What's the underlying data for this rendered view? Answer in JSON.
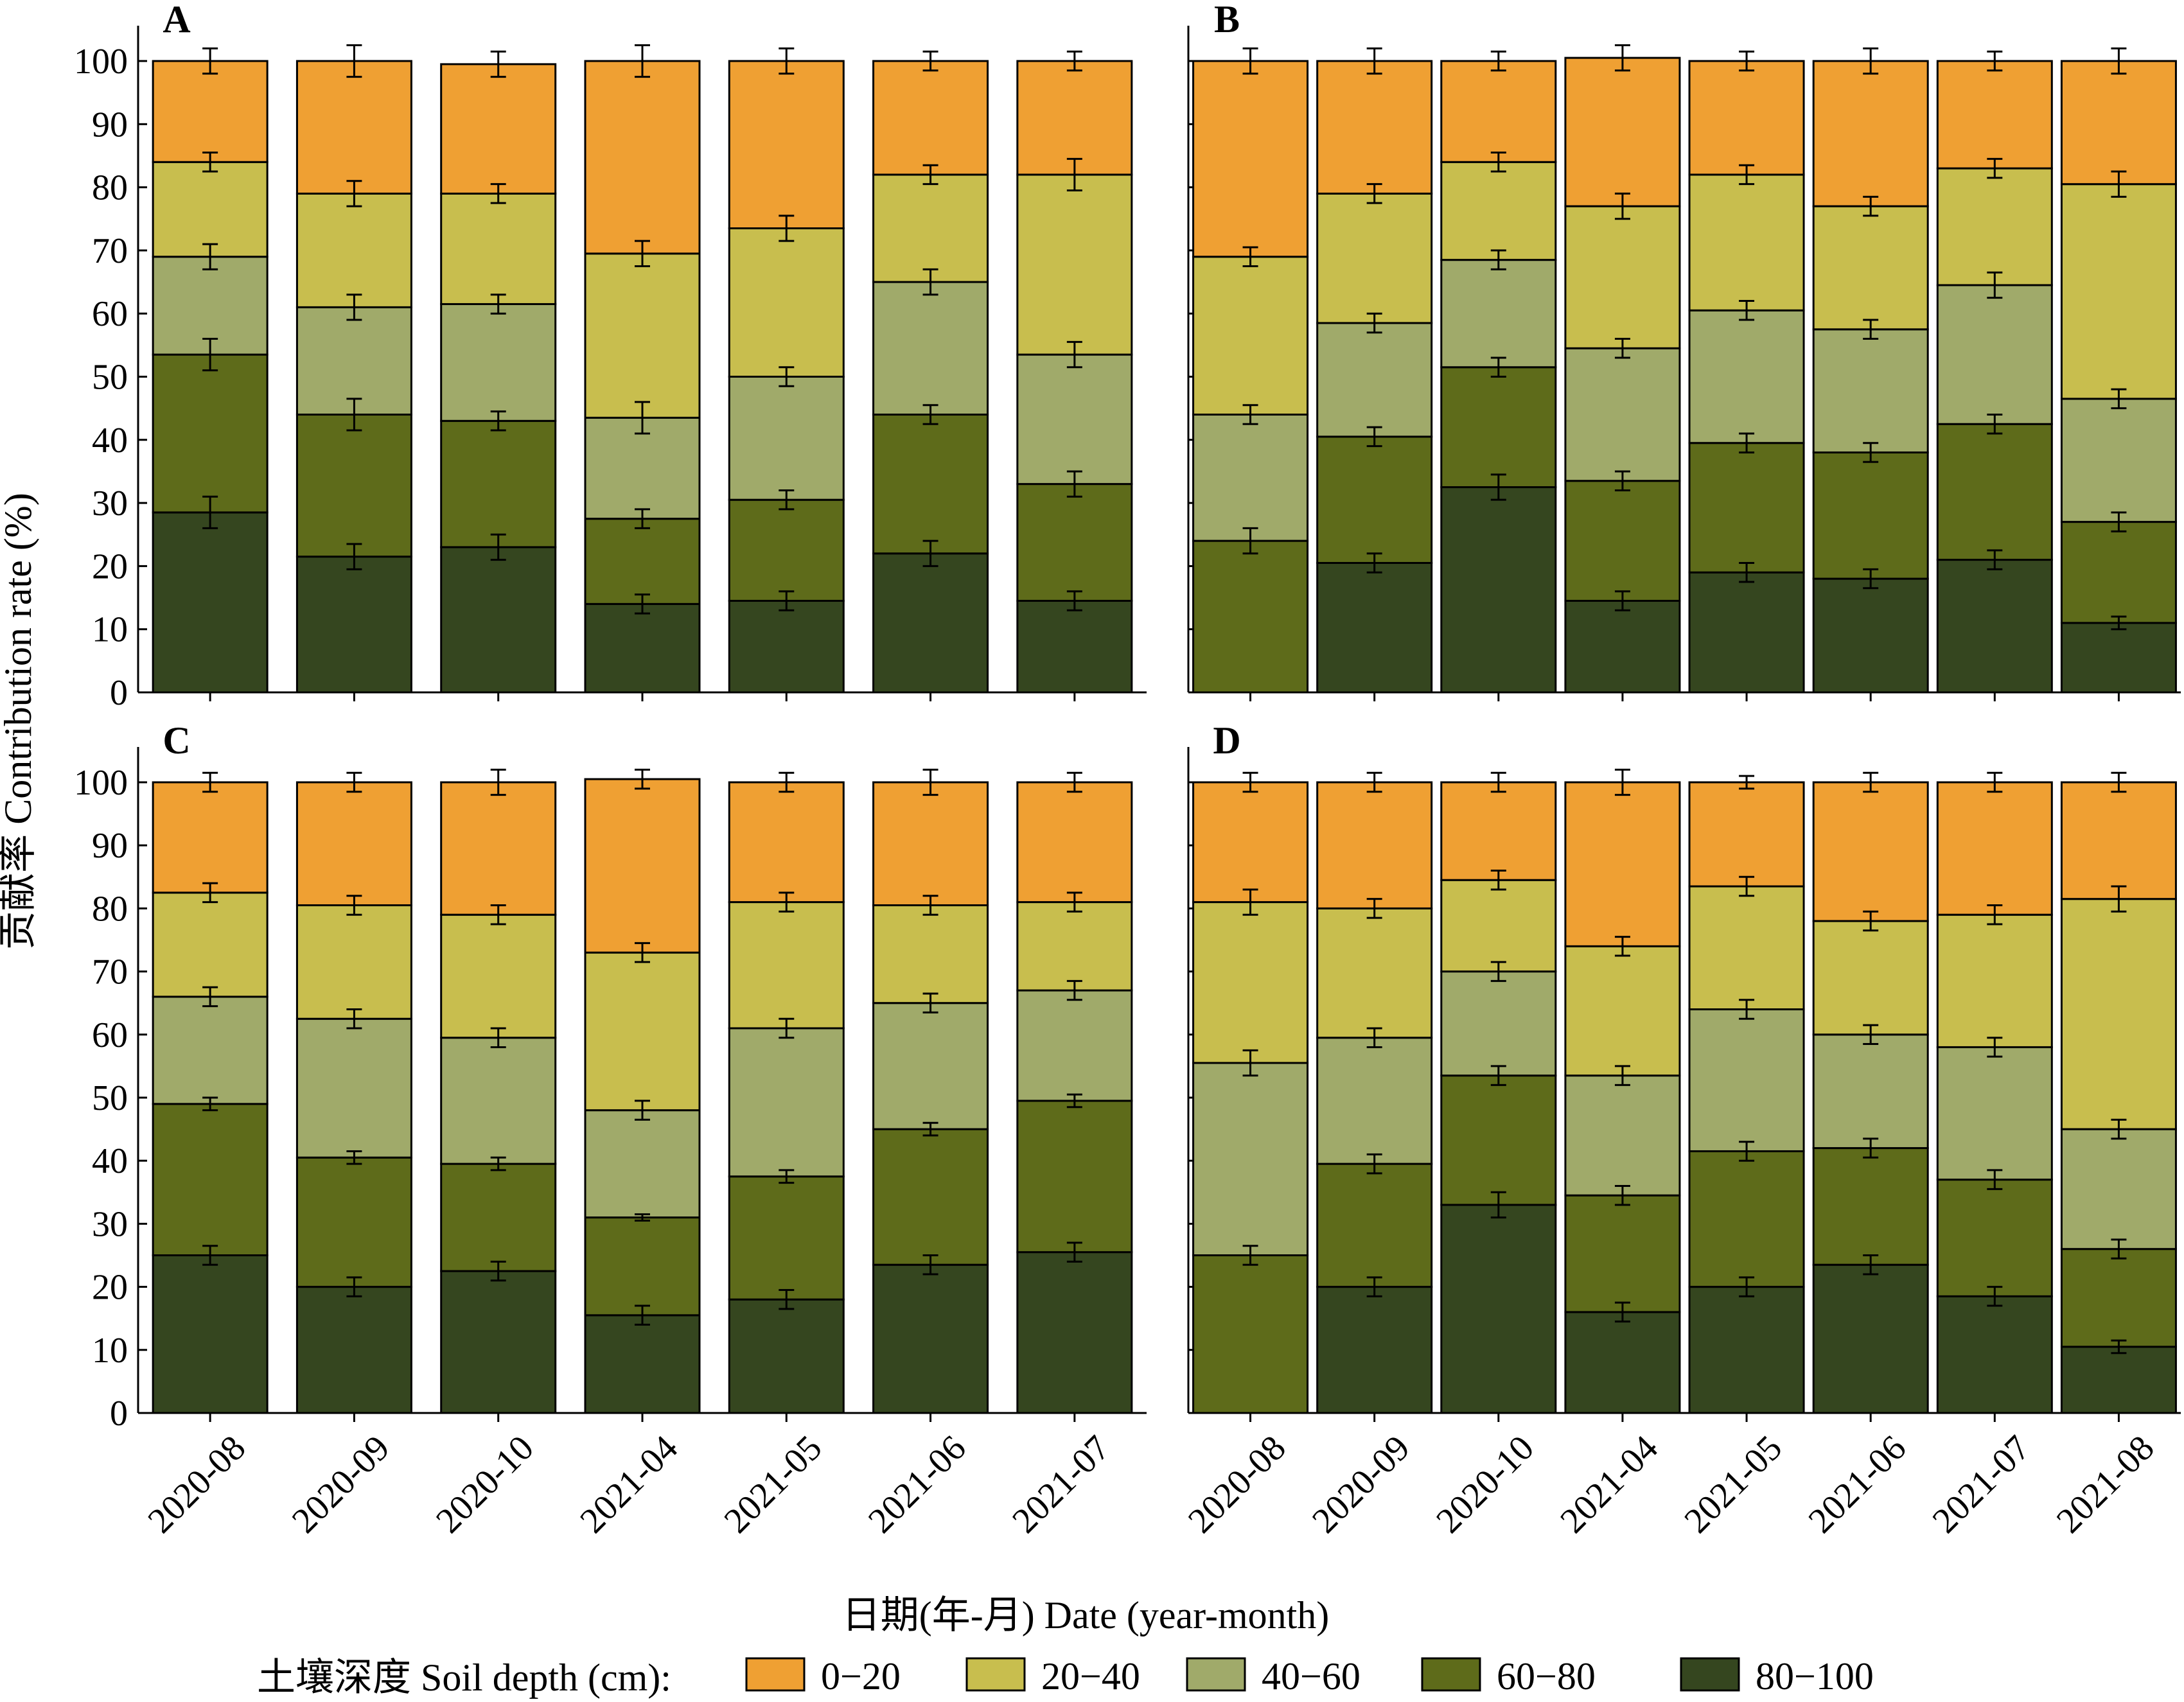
{
  "figure": {
    "ylabel": "贡献率 Contribution rate (%)",
    "xlabel": "日期(年-月) Date (year-month)",
    "legend_title": "土壤深度 Soil depth (cm):"
  },
  "colors": {
    "0-20": "#EFA033",
    "20-40": "#C8BE4E",
    "40-60": "#A0AA6A",
    "60-80": "#5E6B1A",
    "80-100": "#35461F"
  },
  "chart_data": [
    {
      "type": "bar",
      "stacked": true,
      "panel": "A",
      "categories": [
        "2020-08",
        "2020-09",
        "2020-10",
        "2021-04",
        "2021-05",
        "2021-06",
        "2021-07"
      ],
      "ylim": [
        0,
        100
      ],
      "yticks": [
        0,
        10,
        20,
        30,
        40,
        50,
        60,
        70,
        80,
        90,
        100
      ],
      "grid": false,
      "legend": "bottom",
      "series": [
        {
          "name": "80−100",
          "values": [
            28.5,
            21.5,
            23,
            14,
            14.5,
            22,
            14.5
          ],
          "error": [
            2.5,
            2,
            2,
            1.5,
            1.5,
            2,
            1.5
          ]
        },
        {
          "name": "60−80",
          "values": [
            25,
            22.5,
            20,
            13.5,
            16,
            22,
            18.5
          ],
          "error": [
            2.5,
            2.5,
            1.5,
            1.5,
            1.5,
            1.5,
            2
          ]
        },
        {
          "name": "40−60",
          "values": [
            15.5,
            17,
            18.5,
            16,
            19.5,
            21,
            20.5
          ],
          "error": [
            2,
            2,
            1.5,
            2.5,
            1.5,
            2,
            2
          ]
        },
        {
          "name": "20−40",
          "values": [
            15,
            18,
            17.5,
            26,
            23.5,
            17,
            28.5
          ],
          "error": [
            1.5,
            2,
            1.5,
            2,
            2,
            1.5,
            2.5
          ]
        },
        {
          "name": "0−20",
          "values": [
            16,
            21,
            20.5,
            30.5,
            26.5,
            18,
            18
          ],
          "error": [
            2,
            2.5,
            2,
            2.5,
            2,
            1.5,
            1.5
          ]
        }
      ]
    },
    {
      "type": "bar",
      "stacked": true,
      "panel": "B",
      "categories": [
        "2020-08",
        "2020-09",
        "2020-10",
        "2021-04",
        "2021-05",
        "2021-06",
        "2021-07",
        "2021-08"
      ],
      "ylim": [
        0,
        100
      ],
      "yticks": [
        0,
        10,
        20,
        30,
        40,
        50,
        60,
        70,
        80,
        90,
        100
      ],
      "grid": false,
      "series": [
        {
          "name": "80−100",
          "values": [
            0,
            20.5,
            32.5,
            14.5,
            19,
            18,
            21,
            11
          ],
          "error": [
            0,
            1.5,
            2,
            1.5,
            1.5,
            1.5,
            1.5,
            1
          ]
        },
        {
          "name": "60−80",
          "values": [
            24,
            20,
            19,
            19,
            20.5,
            20,
            21.5,
            16
          ],
          "error": [
            2,
            1.5,
            1.5,
            1.5,
            1.5,
            1.5,
            1.5,
            1.5
          ]
        },
        {
          "name": "40−60",
          "values": [
            20,
            18,
            17,
            21,
            21,
            19.5,
            22,
            19.5
          ],
          "error": [
            1.5,
            1.5,
            1.5,
            1.5,
            1.5,
            1.5,
            2,
            1.5
          ]
        },
        {
          "name": "20−40",
          "values": [
            25,
            20.5,
            15.5,
            22.5,
            21.5,
            19.5,
            18.5,
            34
          ],
          "error": [
            1.5,
            1.5,
            1.5,
            2,
            1.5,
            1.5,
            1.5,
            2
          ]
        },
        {
          "name": "0−20",
          "values": [
            31,
            21,
            16,
            23.5,
            18,
            23,
            17,
            19.5
          ],
          "error": [
            2,
            2,
            1.5,
            2,
            1.5,
            2,
            1.5,
            2
          ]
        }
      ]
    },
    {
      "type": "bar",
      "stacked": true,
      "panel": "C",
      "categories": [
        "2020-08",
        "2020-09",
        "2020-10",
        "2021-04",
        "2021-05",
        "2021-06",
        "2021-07"
      ],
      "ylim": [
        0,
        100
      ],
      "yticks": [
        0,
        10,
        20,
        30,
        40,
        50,
        60,
        70,
        80,
        90,
        100
      ],
      "grid": false,
      "series": [
        {
          "name": "80−100",
          "values": [
            25,
            20,
            22.5,
            15.5,
            18,
            23.5,
            25.5
          ],
          "error": [
            1.5,
            1.5,
            1.5,
            1.5,
            1.5,
            1.5,
            1.5
          ]
        },
        {
          "name": "60−80",
          "values": [
            24,
            20.5,
            17,
            15.5,
            19.5,
            21.5,
            24
          ],
          "error": [
            1,
            1,
            1,
            0.5,
            1,
            1,
            1
          ]
        },
        {
          "name": "40−60",
          "values": [
            17,
            22,
            20,
            17,
            23.5,
            20,
            17.5
          ],
          "error": [
            1.5,
            1.5,
            1.5,
            1.5,
            1.5,
            1.5,
            1.5
          ]
        },
        {
          "name": "20−40",
          "values": [
            16.5,
            18,
            19.5,
            25,
            20,
            15.5,
            14
          ],
          "error": [
            1.5,
            1.5,
            1.5,
            1.5,
            1.5,
            1.5,
            1.5
          ]
        },
        {
          "name": "0−20",
          "values": [
            17.5,
            19.5,
            21,
            27.5,
            19,
            19.5,
            19
          ],
          "error": [
            1.5,
            1.5,
            2,
            1.5,
            1.5,
            2,
            1.5
          ]
        }
      ]
    },
    {
      "type": "bar",
      "stacked": true,
      "panel": "D",
      "categories": [
        "2020-08",
        "2020-09",
        "2020-10",
        "2021-04",
        "2021-05",
        "2021-06",
        "2021-07",
        "2021-08"
      ],
      "ylim": [
        0,
        100
      ],
      "yticks": [
        0,
        10,
        20,
        30,
        40,
        50,
        60,
        70,
        80,
        90,
        100
      ],
      "grid": false,
      "series": [
        {
          "name": "80−100",
          "values": [
            0,
            20,
            33,
            16,
            20,
            23.5,
            18.5,
            10.5
          ],
          "error": [
            0,
            1.5,
            2,
            1.5,
            1.5,
            1.5,
            1.5,
            1
          ]
        },
        {
          "name": "60−80",
          "values": [
            25,
            19.5,
            20.5,
            18.5,
            21.5,
            18.5,
            18.5,
            15.5
          ],
          "error": [
            1.5,
            1.5,
            1.5,
            1.5,
            1.5,
            1.5,
            1.5,
            1.5
          ]
        },
        {
          "name": "40−60",
          "values": [
            30.5,
            20,
            16.5,
            19,
            22.5,
            18,
            21,
            19
          ],
          "error": [
            2,
            1.5,
            1.5,
            1.5,
            1.5,
            1.5,
            1.5,
            1.5
          ]
        },
        {
          "name": "20−40",
          "values": [
            25.5,
            20.5,
            14.5,
            20.5,
            19.5,
            18,
            21,
            36.5
          ],
          "error": [
            2,
            1.5,
            1.5,
            1.5,
            1.5,
            1.5,
            1.5,
            2
          ]
        },
        {
          "name": "0−20",
          "values": [
            19,
            20,
            15.5,
            26,
            16.5,
            22,
            21,
            18.5
          ],
          "error": [
            1.5,
            1.5,
            1.5,
            2,
            1,
            1.5,
            1.5,
            1.5
          ]
        }
      ]
    }
  ]
}
